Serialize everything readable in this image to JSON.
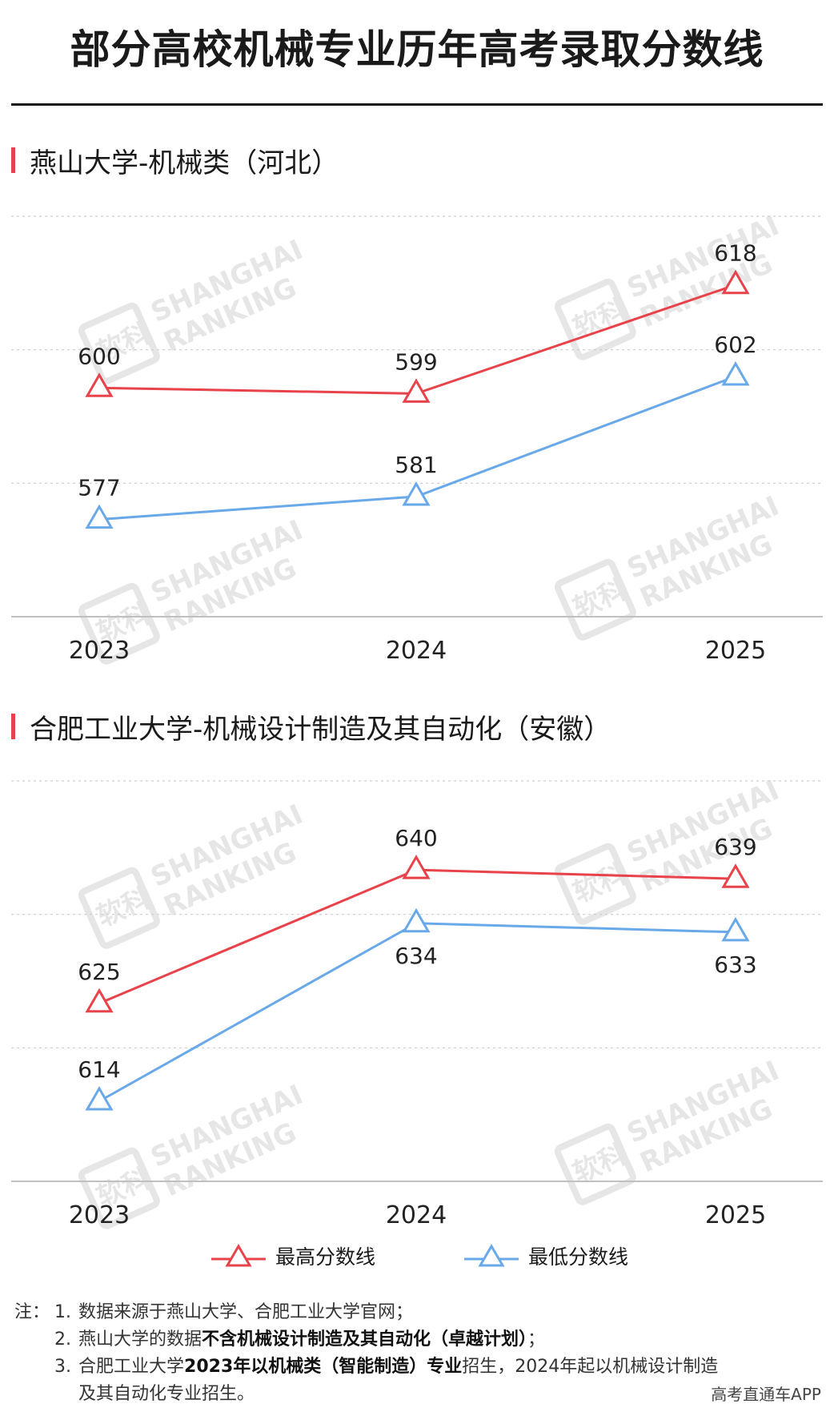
{
  "title": "部分高校机械专业历年高考录取分数线",
  "chart_data": [
    {
      "type": "line",
      "title": "燕山大学-机械类（河北）",
      "categories": [
        "2023",
        "2024",
        "2025"
      ],
      "series": [
        {
          "name": "最高分数线",
          "values": [
            600,
            599,
            618
          ],
          "color": "#e8434b"
        },
        {
          "name": "最低分数线",
          "values": [
            577,
            581,
            602
          ],
          "color": "#6aa9e9"
        }
      ],
      "ylim": [
        560,
        630
      ],
      "grid": true
    },
    {
      "type": "line",
      "title": "合肥工业大学-机械设计制造及其自动化（安徽）",
      "categories": [
        "2023",
        "2024",
        "2025"
      ],
      "series": [
        {
          "name": "最高分数线",
          "values": [
            625,
            640,
            639
          ],
          "color": "#e8434b"
        },
        {
          "name": "最低分数线",
          "values": [
            614,
            634,
            633
          ],
          "color": "#6aa9e9"
        }
      ],
      "ylim": [
        605,
        650
      ],
      "grid": true
    }
  ],
  "legend": {
    "items": [
      {
        "label": "最高分数线",
        "color": "#e8434b"
      },
      {
        "label": "最低分数线",
        "color": "#6aa9e9"
      }
    ]
  },
  "watermark": {
    "line1": "SHANGHAI",
    "line2": "RANKING",
    "logo": "软科"
  },
  "notes": {
    "lead": "注：",
    "items": [
      {
        "num": "1.",
        "parts": [
          {
            "t": "数据来源于燕山大学、合肥工业大学官网；",
            "b": false
          }
        ]
      },
      {
        "num": "2.",
        "parts": [
          {
            "t": "燕山大学的数据",
            "b": false
          },
          {
            "t": "不含机械设计制造及其自动化（卓越计划）",
            "b": true
          },
          {
            "t": "；",
            "b": false
          }
        ]
      },
      {
        "num": "3.",
        "parts": [
          {
            "t": "合肥工业大学",
            "b": false
          },
          {
            "t": "2023年以机械类（智能制造）专业",
            "b": true
          },
          {
            "t": "招生，2024年起以机械设计制造",
            "b": false
          }
        ]
      }
    ],
    "continuation": "及其自动化专业招生。"
  },
  "footer": "高考直通车APP"
}
